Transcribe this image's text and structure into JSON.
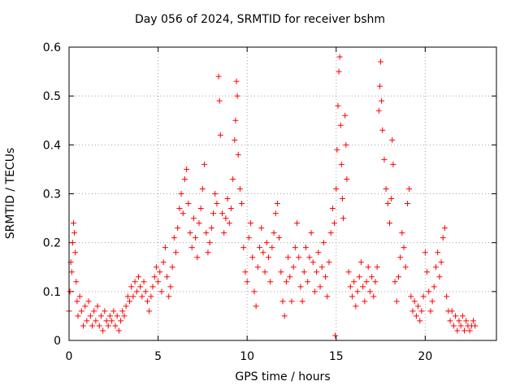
{
  "chart_data": {
    "type": "scatter",
    "title": "Day 056 of 2024, SRMTID for receiver bshm",
    "xlabel": "GPS time / hours",
    "ylabel": "SRMTID / TECUs",
    "xlim": [
      0,
      24
    ],
    "ylim": [
      0,
      0.6
    ],
    "xticks": [
      0,
      5,
      10,
      15,
      20
    ],
    "yticks": [
      0,
      0.1,
      0.2,
      0.3,
      0.4,
      0.5,
      0.6
    ],
    "grid": true,
    "marker": "+",
    "color": "#ff0000",
    "series": [
      {
        "name": "SRMTID",
        "points": [
          [
            0.0,
            0.06
          ],
          [
            0.05,
            0.1
          ],
          [
            0.1,
            0.16
          ],
          [
            0.15,
            0.14
          ],
          [
            0.2,
            0.2
          ],
          [
            0.25,
            0.24
          ],
          [
            0.3,
            0.22
          ],
          [
            0.35,
            0.18
          ],
          [
            0.4,
            0.12
          ],
          [
            0.45,
            0.08
          ],
          [
            0.5,
            0.05
          ],
          [
            0.6,
            0.09
          ],
          [
            0.7,
            0.06
          ],
          [
            0.8,
            0.03
          ],
          [
            0.9,
            0.07
          ],
          [
            1.0,
            0.04
          ],
          [
            1.1,
            0.08
          ],
          [
            1.2,
            0.05
          ],
          [
            1.3,
            0.03
          ],
          [
            1.4,
            0.06
          ],
          [
            1.5,
            0.04
          ],
          [
            1.6,
            0.07
          ],
          [
            1.7,
            0.03
          ],
          [
            1.8,
            0.05
          ],
          [
            1.9,
            0.02
          ],
          [
            2.0,
            0.06
          ],
          [
            2.1,
            0.04
          ],
          [
            2.2,
            0.03
          ],
          [
            2.3,
            0.05
          ],
          [
            2.4,
            0.04
          ],
          [
            2.5,
            0.06
          ],
          [
            2.6,
            0.03
          ],
          [
            2.7,
            0.05
          ],
          [
            2.8,
            0.02
          ],
          [
            2.9,
            0.04
          ],
          [
            3.0,
            0.06
          ],
          [
            3.1,
            0.05
          ],
          [
            3.2,
            0.07
          ],
          [
            3.3,
            0.09
          ],
          [
            3.4,
            0.08
          ],
          [
            3.5,
            0.11
          ],
          [
            3.6,
            0.09
          ],
          [
            3.7,
            0.12
          ],
          [
            3.8,
            0.1
          ],
          [
            3.9,
            0.13
          ],
          [
            4.0,
            0.11
          ],
          [
            4.1,
            0.09
          ],
          [
            4.2,
            0.12
          ],
          [
            4.3,
            0.1
          ],
          [
            4.4,
            0.08
          ],
          [
            4.5,
            0.06
          ],
          [
            4.6,
            0.09
          ],
          [
            4.7,
            0.11
          ],
          [
            4.8,
            0.13
          ],
          [
            4.9,
            0.15
          ],
          [
            5.0,
            0.12
          ],
          [
            5.1,
            0.14
          ],
          [
            5.2,
            0.1
          ],
          [
            5.3,
            0.16
          ],
          [
            5.4,
            0.19
          ],
          [
            5.5,
            0.13
          ],
          [
            5.6,
            0.09
          ],
          [
            5.7,
            0.11
          ],
          [
            5.8,
            0.15
          ],
          [
            5.9,
            0.21
          ],
          [
            6.0,
            0.18
          ],
          [
            6.1,
            0.23
          ],
          [
            6.2,
            0.27
          ],
          [
            6.3,
            0.3
          ],
          [
            6.4,
            0.26
          ],
          [
            6.5,
            0.33
          ],
          [
            6.6,
            0.35
          ],
          [
            6.7,
            0.28
          ],
          [
            6.8,
            0.22
          ],
          [
            6.9,
            0.19
          ],
          [
            7.0,
            0.25
          ],
          [
            7.1,
            0.21
          ],
          [
            7.2,
            0.17
          ],
          [
            7.3,
            0.24
          ],
          [
            7.4,
            0.27
          ],
          [
            7.5,
            0.31
          ],
          [
            7.6,
            0.36
          ],
          [
            7.7,
            0.22
          ],
          [
            7.8,
            0.18
          ],
          [
            7.9,
            0.2
          ],
          [
            8.0,
            0.23
          ],
          [
            8.1,
            0.26
          ],
          [
            8.2,
            0.3
          ],
          [
            8.3,
            0.28
          ],
          [
            8.4,
            0.54
          ],
          [
            8.45,
            0.49
          ],
          [
            8.5,
            0.42
          ],
          [
            8.6,
            0.26
          ],
          [
            8.7,
            0.22
          ],
          [
            8.8,
            0.25
          ],
          [
            8.9,
            0.29
          ],
          [
            9.0,
            0.24
          ],
          [
            9.1,
            0.27
          ],
          [
            9.2,
            0.33
          ],
          [
            9.3,
            0.41
          ],
          [
            9.35,
            0.45
          ],
          [
            9.4,
            0.53
          ],
          [
            9.45,
            0.5
          ],
          [
            9.5,
            0.38
          ],
          [
            9.6,
            0.31
          ],
          [
            9.7,
            0.28
          ],
          [
            9.8,
            0.19
          ],
          [
            9.9,
            0.14
          ],
          [
            10.0,
            0.12
          ],
          [
            10.1,
            0.21
          ],
          [
            10.2,
            0.24
          ],
          [
            10.3,
            0.17
          ],
          [
            10.4,
            0.1
          ],
          [
            10.5,
            0.07
          ],
          [
            10.6,
            0.15
          ],
          [
            10.7,
            0.19
          ],
          [
            10.8,
            0.23
          ],
          [
            10.9,
            0.18
          ],
          [
            11.0,
            0.14
          ],
          [
            11.1,
            0.2
          ],
          [
            11.2,
            0.17
          ],
          [
            11.3,
            0.12
          ],
          [
            11.4,
            0.19
          ],
          [
            11.5,
            0.22
          ],
          [
            11.6,
            0.26
          ],
          [
            11.7,
            0.28
          ],
          [
            11.8,
            0.21
          ],
          [
            11.9,
            0.14
          ],
          [
            12.0,
            0.08
          ],
          [
            12.1,
            0.05
          ],
          [
            12.2,
            0.12
          ],
          [
            12.3,
            0.17
          ],
          [
            12.4,
            0.13
          ],
          [
            12.5,
            0.08
          ],
          [
            12.6,
            0.15
          ],
          [
            12.7,
            0.19
          ],
          [
            12.8,
            0.24
          ],
          [
            12.9,
            0.17
          ],
          [
            13.0,
            0.11
          ],
          [
            13.1,
            0.08
          ],
          [
            13.2,
            0.14
          ],
          [
            13.3,
            0.19
          ],
          [
            13.4,
            0.12
          ],
          [
            13.5,
            0.17
          ],
          [
            13.6,
            0.22
          ],
          [
            13.7,
            0.16
          ],
          [
            13.8,
            0.1
          ],
          [
            13.9,
            0.14
          ],
          [
            14.0,
            0.18
          ],
          [
            14.1,
            0.11
          ],
          [
            14.2,
            0.15
          ],
          [
            14.3,
            0.2
          ],
          [
            14.4,
            0.13
          ],
          [
            14.5,
            0.09
          ],
          [
            14.6,
            0.16
          ],
          [
            14.7,
            0.22
          ],
          [
            14.8,
            0.27
          ],
          [
            14.9,
            0.24
          ],
          [
            14.95,
            0.01
          ],
          [
            15.0,
            0.31
          ],
          [
            15.05,
            0.39
          ],
          [
            15.1,
            0.48
          ],
          [
            15.15,
            0.55
          ],
          [
            15.2,
            0.58
          ],
          [
            15.25,
            0.44
          ],
          [
            15.3,
            0.36
          ],
          [
            15.35,
            0.29
          ],
          [
            15.4,
            0.25
          ],
          [
            15.5,
            0.46
          ],
          [
            15.55,
            0.4
          ],
          [
            15.6,
            0.33
          ],
          [
            15.7,
            0.14
          ],
          [
            15.8,
            0.11
          ],
          [
            15.9,
            0.09
          ],
          [
            16.0,
            0.12
          ],
          [
            16.1,
            0.07
          ],
          [
            16.2,
            0.1
          ],
          [
            16.3,
            0.13
          ],
          [
            16.4,
            0.16
          ],
          [
            16.5,
            0.11
          ],
          [
            16.6,
            0.08
          ],
          [
            16.7,
            0.12
          ],
          [
            16.8,
            0.15
          ],
          [
            16.9,
            0.1
          ],
          [
            17.0,
            0.13
          ],
          [
            17.1,
            0.09
          ],
          [
            17.2,
            0.12
          ],
          [
            17.3,
            0.15
          ],
          [
            17.4,
            0.47
          ],
          [
            17.45,
            0.52
          ],
          [
            17.5,
            0.57
          ],
          [
            17.55,
            0.49
          ],
          [
            17.6,
            0.43
          ],
          [
            17.7,
            0.37
          ],
          [
            17.8,
            0.31
          ],
          [
            17.9,
            0.28
          ],
          [
            18.0,
            0.24
          ],
          [
            18.1,
            0.29
          ],
          [
            18.15,
            0.41
          ],
          [
            18.2,
            0.36
          ],
          [
            18.3,
            0.12
          ],
          [
            18.4,
            0.08
          ],
          [
            18.5,
            0.13
          ],
          [
            18.6,
            0.17
          ],
          [
            18.7,
            0.22
          ],
          [
            18.8,
            0.19
          ],
          [
            18.9,
            0.15
          ],
          [
            19.0,
            0.28
          ],
          [
            19.1,
            0.31
          ],
          [
            19.2,
            0.09
          ],
          [
            19.3,
            0.06
          ],
          [
            19.4,
            0.08
          ],
          [
            19.5,
            0.05
          ],
          [
            19.6,
            0.07
          ],
          [
            19.7,
            0.04
          ],
          [
            19.8,
            0.06
          ],
          [
            19.9,
            0.09
          ],
          [
            20.0,
            0.18
          ],
          [
            20.1,
            0.14
          ],
          [
            20.2,
            0.1
          ],
          [
            20.3,
            0.06
          ],
          [
            20.4,
            0.08
          ],
          [
            20.5,
            0.11
          ],
          [
            20.6,
            0.15
          ],
          [
            20.7,
            0.18
          ],
          [
            20.8,
            0.13
          ],
          [
            20.9,
            0.16
          ],
          [
            21.0,
            0.21
          ],
          [
            21.1,
            0.23
          ],
          [
            21.2,
            0.09
          ],
          [
            21.3,
            0.06
          ],
          [
            21.4,
            0.04
          ],
          [
            21.5,
            0.06
          ],
          [
            21.6,
            0.03
          ],
          [
            21.7,
            0.05
          ],
          [
            21.8,
            0.02
          ],
          [
            21.9,
            0.04
          ],
          [
            22.0,
            0.03
          ],
          [
            22.1,
            0.05
          ],
          [
            22.2,
            0.02
          ],
          [
            22.3,
            0.04
          ],
          [
            22.4,
            0.03
          ],
          [
            22.5,
            0.02
          ],
          [
            22.6,
            0.03
          ],
          [
            22.7,
            0.04
          ],
          [
            22.8,
            0.03
          ]
        ]
      }
    ]
  }
}
